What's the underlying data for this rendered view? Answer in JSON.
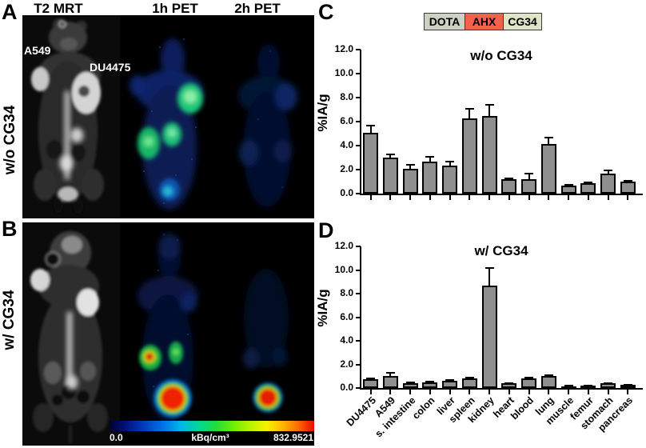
{
  "figure": {
    "panel_labels": {
      "a": "A",
      "b": "B",
      "c": "C",
      "d": "D"
    },
    "column_headers": [
      "T2 MRT",
      "1h PET",
      "2h PET"
    ],
    "row_labels": [
      "w/o CG34",
      "w/ CG34"
    ],
    "mrt_annotations": {
      "left_tumor": "A549",
      "right_tumor": "DU4475"
    },
    "colorbar": {
      "min_label": "0.0",
      "unit_label": "kBq/cm³",
      "max_label": "832.9521"
    },
    "construct": {
      "segments": [
        {
          "label": "DOTA",
          "color": "#cbd1c3"
        },
        {
          "label": "AHX",
          "color": "#f2604e"
        },
        {
          "label": "CG34",
          "color": "#dfe4c6"
        }
      ]
    }
  },
  "chart_data": [
    {
      "type": "bar",
      "title": "w/o CG34",
      "ylabel": "%IA/g",
      "ylim": [
        0,
        12
      ],
      "ytick_step": 2,
      "ytick_labels": [
        "0.0",
        "2.0",
        "4.0",
        "6.0",
        "8.0",
        "10.0",
        "12.0"
      ],
      "grid": false,
      "legend_position": "none",
      "bar_color": "#8f8f8f",
      "show_x_labels": false,
      "categories": [
        "DU4475",
        "A549",
        "s. intestine",
        "colon",
        "liver",
        "spleen",
        "kidney",
        "heart",
        "blood",
        "lung",
        "muscle",
        "femur",
        "stomach",
        "pancreas"
      ],
      "values": [
        5.1,
        3.0,
        2.1,
        2.65,
        2.35,
        6.25,
        6.5,
        1.2,
        1.2,
        4.15,
        0.65,
        0.85,
        1.7,
        1.0
      ],
      "errors": [
        0.55,
        0.3,
        0.3,
        0.4,
        0.3,
        0.85,
        0.9,
        0.1,
        0.45,
        0.5,
        0.07,
        0.06,
        0.25,
        0.08
      ]
    },
    {
      "type": "bar",
      "title": "w/ CG34",
      "ylabel": "%IA/g",
      "ylim": [
        0,
        12
      ],
      "ytick_step": 2,
      "ytick_labels": [
        "0.0",
        "2.0",
        "4.0",
        "6.0",
        "8.0",
        "10.0",
        "12.0"
      ],
      "grid": false,
      "legend_position": "none",
      "bar_color": "#8f8f8f",
      "show_x_labels": true,
      "categories": [
        "DU4475",
        "A549",
        "s. intestine",
        "colon",
        "liver",
        "spleen",
        "kidney",
        "heart",
        "blood",
        "lung",
        "muscle",
        "femur",
        "stomach",
        "pancreas"
      ],
      "values": [
        0.72,
        1.05,
        0.43,
        0.47,
        0.61,
        0.83,
        8.7,
        0.38,
        0.79,
        1.02,
        0.16,
        0.2,
        0.38,
        0.25
      ],
      "errors": [
        0.06,
        0.25,
        0.05,
        0.05,
        0.06,
        0.08,
        1.5,
        0.05,
        0.08,
        0.07,
        0.03,
        0.03,
        0.05,
        0.03
      ]
    }
  ]
}
